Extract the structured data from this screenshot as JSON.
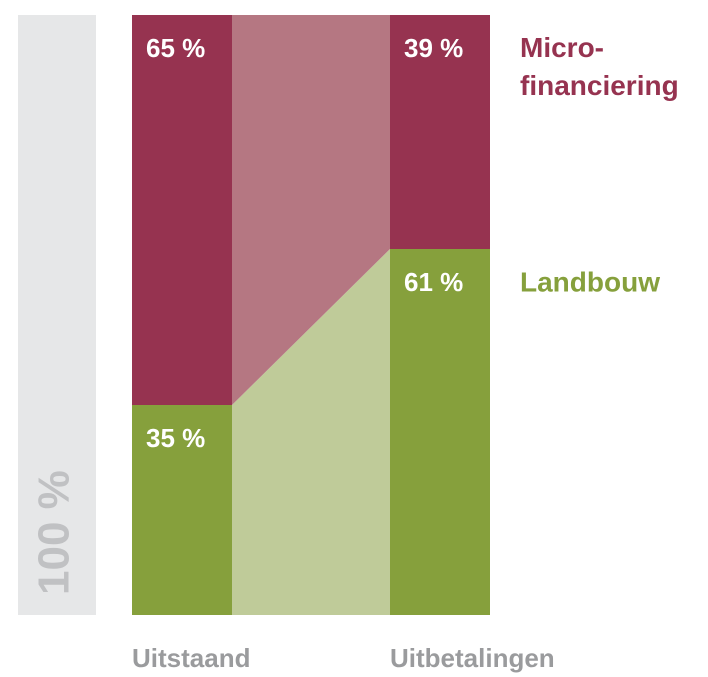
{
  "chart_data": {
    "type": "stacked_bar_100",
    "axis_label": "100 %",
    "categories": [
      "Uitstaand",
      "Uitbetalingen"
    ],
    "ylim": [
      0,
      100
    ],
    "series": [
      {
        "name": "Landbouw",
        "color": "#86a03c",
        "link_color": "#bfcb99",
        "values": [
          35,
          61
        ],
        "value_labels": [
          "35 %",
          "61 %"
        ]
      },
      {
        "name": "Micro-financiering",
        "color": "#963350",
        "link_color": "#b57782",
        "values": [
          65,
          39
        ],
        "value_labels": [
          "65 %",
          "39 %"
        ]
      }
    ]
  }
}
